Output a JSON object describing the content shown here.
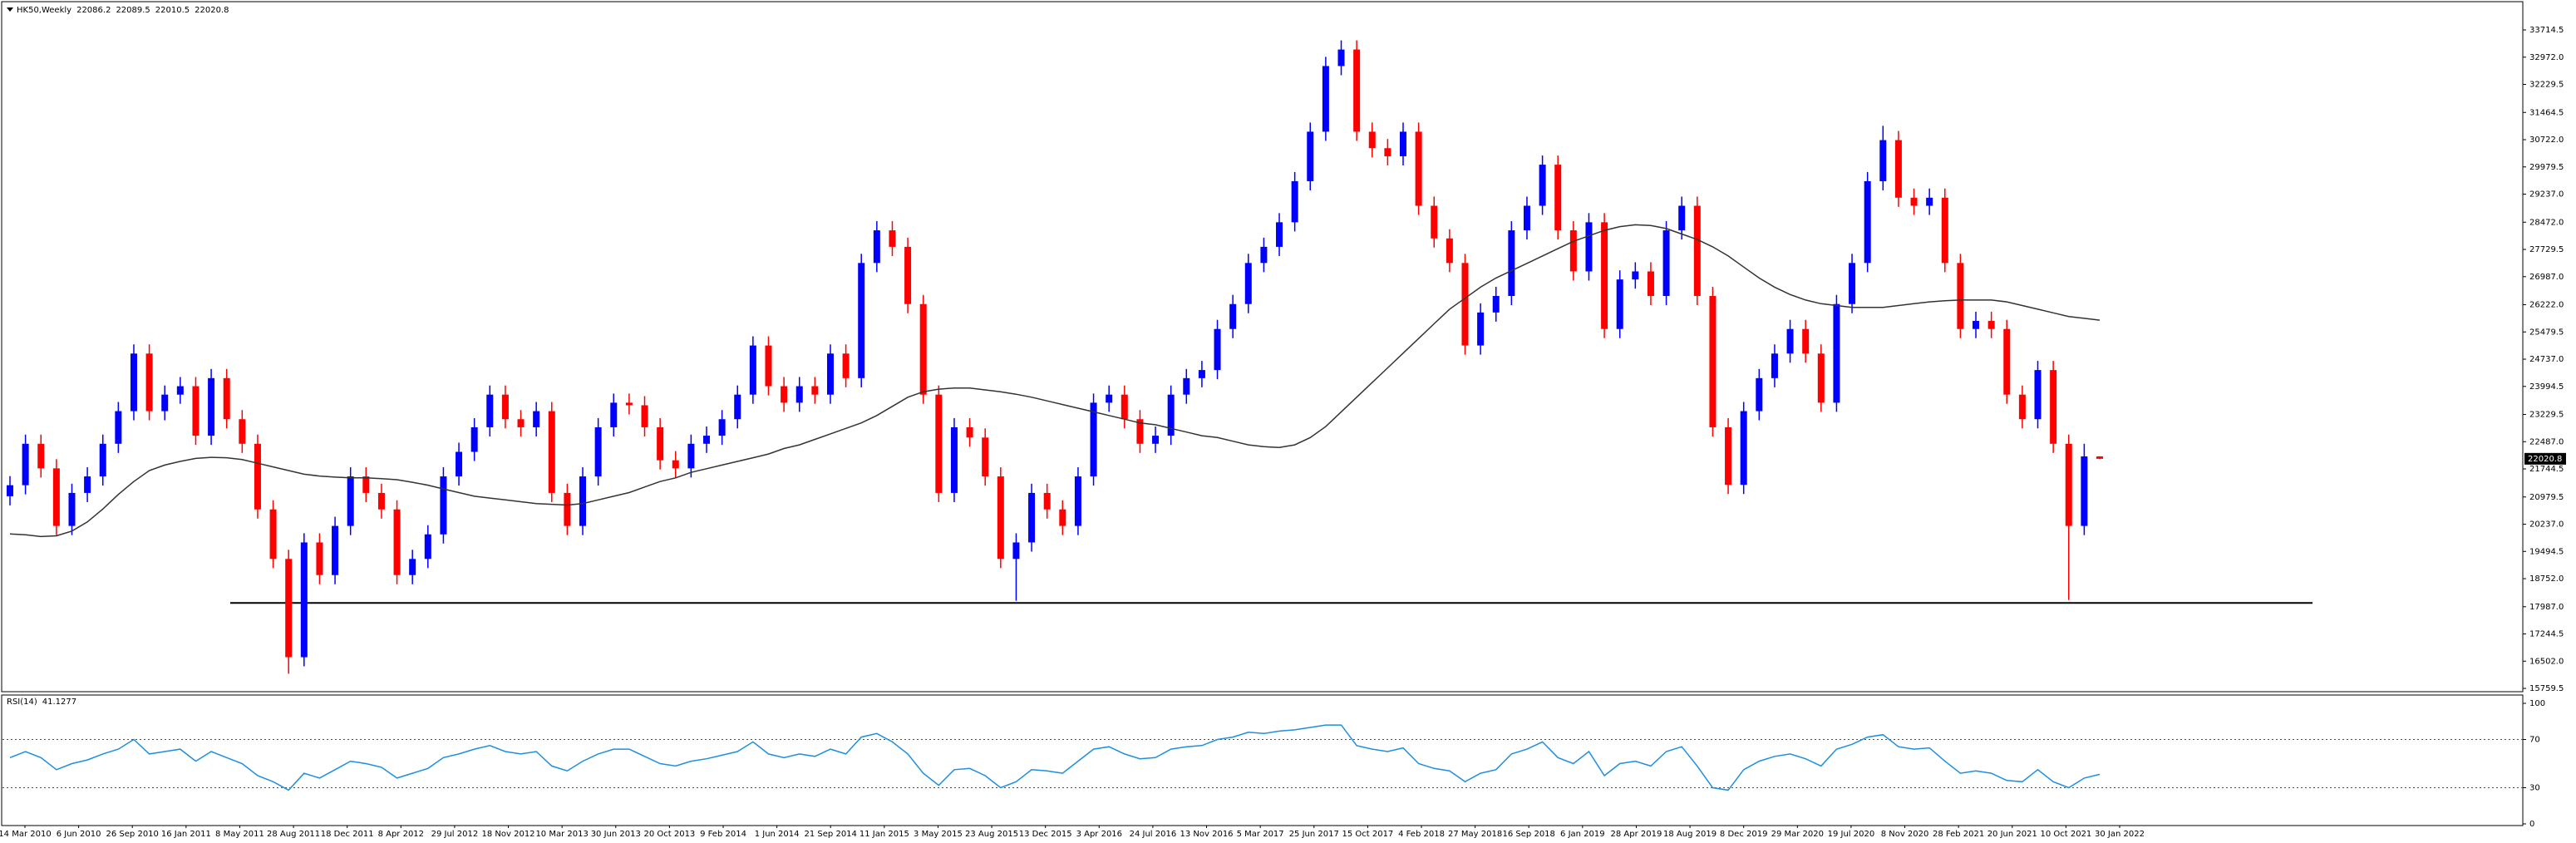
{
  "chart_data": {
    "type": "candlestick",
    "symbol": "HK50,Weekly",
    "up_color": "#0000ff",
    "down_color": "#ff0000",
    "open": [
      21000,
      21300,
      22430,
      21760,
      20190,
      21090,
      21540,
      22430,
      23320,
      24890,
      23320,
      23770,
      24000,
      22650,
      24220,
      23100,
      22430,
      20640,
      19290,
      16610,
      19740,
      18850,
      20190,
      21540,
      21090,
      20640,
      18850,
      19290,
      19960,
      21540,
      22210,
      22880,
      23770,
      23100,
      22880,
      23320,
      21090,
      20190,
      21540,
      22880,
      23550,
      23480,
      22880,
      21980,
      21760,
      22430,
      22650,
      23100,
      23770,
      25110,
      24000,
      23550,
      24000,
      23770,
      24890,
      24220,
      27360,
      28250,
      27800,
      26240,
      23770,
      21090,
      22880,
      22600,
      21540,
      19290,
      19740,
      21090,
      20640,
      20190,
      21540,
      23550,
      23770,
      23100,
      22430,
      22650,
      23770,
      24220,
      24440,
      25560,
      26240,
      27360,
      27800,
      28470,
      29590,
      30940,
      32730,
      33180,
      30940,
      30490,
      30270,
      30940,
      28920,
      28030,
      27360,
      25110,
      26010,
      26460,
      28250,
      28920,
      30040,
      28250,
      27130,
      28470,
      25560,
      26910,
      27130,
      26460,
      28250,
      28920,
      26460,
      22880,
      21310,
      23320,
      24220,
      24890,
      25560,
      24890,
      23550,
      26240,
      27360,
      29590,
      30710,
      29140,
      28920,
      29140,
      27360,
      25560,
      25780,
      25560,
      23770,
      23100,
      24440,
      22430,
      20190,
      22086.2
    ],
    "high": [
      21550,
      22680,
      22680,
      22010,
      21340,
      21790,
      22680,
      23570,
      25140,
      25140,
      24020,
      24250,
      24250,
      24470,
      24470,
      23350,
      22680,
      20890,
      19540,
      19990,
      19990,
      20440,
      21790,
      21790,
      21340,
      20890,
      19540,
      20210,
      21790,
      22460,
      23130,
      24020,
      24020,
      23350,
      23570,
      23570,
      21340,
      21790,
      23130,
      23800,
      23800,
      23730,
      23130,
      22230,
      22680,
      22900,
      23350,
      24020,
      25360,
      25360,
      24250,
      24250,
      24250,
      25140,
      25140,
      27610,
      28500,
      28500,
      28050,
      26490,
      24020,
      23130,
      23130,
      22850,
      21790,
      19990,
      21340,
      21340,
      20890,
      21790,
      23800,
      24020,
      24020,
      23350,
      22900,
      24020,
      24470,
      24690,
      25810,
      26490,
      27610,
      28050,
      28720,
      29840,
      31190,
      32980,
      33430,
      33430,
      31190,
      30740,
      31190,
      31190,
      29170,
      28280,
      27610,
      26260,
      26710,
      28500,
      29170,
      30290,
      30290,
      28500,
      28720,
      28720,
      27160,
      27380,
      27380,
      28500,
      29170,
      29170,
      26710,
      23130,
      23570,
      24470,
      25140,
      25810,
      25810,
      25140,
      26490,
      27610,
      29840,
      31100,
      30960,
      29390,
      29390,
      29390,
      27610,
      26030,
      26030,
      25810,
      24020,
      24690,
      24690,
      22680,
      22430,
      22089.5
    ],
    "low": [
      20750,
      21050,
      21510,
      19940,
      19940,
      20840,
      21290,
      22180,
      23070,
      23070,
      23070,
      23520,
      22400,
      22400,
      22850,
      22180,
      20390,
      19040,
      16160,
      16360,
      18600,
      18600,
      19940,
      20840,
      20390,
      18600,
      18600,
      19040,
      19710,
      21290,
      21960,
      22630,
      22850,
      22630,
      22630,
      20840,
      19940,
      19940,
      21290,
      22630,
      23230,
      22630,
      21730,
      21510,
      21510,
      22180,
      22400,
      22850,
      23520,
      23750,
      23300,
      23300,
      23520,
      23520,
      23970,
      23970,
      27110,
      27550,
      25990,
      23520,
      20840,
      20840,
      22350,
      21290,
      19040,
      18150,
      19490,
      20390,
      19940,
      19940,
      21290,
      23300,
      22850,
      22180,
      22180,
      22400,
      23520,
      23970,
      24190,
      25310,
      25990,
      27110,
      27550,
      28220,
      29340,
      30690,
      32480,
      30690,
      30240,
      30020,
      30020,
      28670,
      27780,
      27110,
      24860,
      24860,
      25760,
      26210,
      28000,
      28670,
      28000,
      26880,
      26880,
      25310,
      25310,
      26660,
      26210,
      26210,
      28000,
      26210,
      22630,
      21060,
      21060,
      23070,
      23970,
      24640,
      24640,
      23300,
      23300,
      25990,
      27110,
      29340,
      28890,
      28670,
      28670,
      27110,
      25310,
      25310,
      25310,
      23520,
      22850,
      22850,
      22180,
      18170,
      19940,
      22010.5
    ],
    "close": [
      21300,
      22430,
      21760,
      20190,
      21090,
      21540,
      22430,
      23320,
      24890,
      23320,
      23770,
      24000,
      22650,
      24220,
      23100,
      22430,
      20640,
      19290,
      16610,
      19740,
      18850,
      20190,
      21540,
      21090,
      20640,
      18850,
      19290,
      19960,
      21540,
      22210,
      22880,
      23770,
      23100,
      22880,
      23320,
      21090,
      20190,
      21540,
      22880,
      23550,
      23480,
      22880,
      21980,
      21760,
      22430,
      22650,
      23100,
      23770,
      25110,
      24000,
      23550,
      24000,
      23770,
      24890,
      24220,
      27360,
      28250,
      27800,
      26240,
      23770,
      21090,
      22880,
      22600,
      21540,
      19290,
      19740,
      21090,
      20640,
      20190,
      21540,
      23550,
      23770,
      23100,
      22430,
      22650,
      23770,
      24220,
      24440,
      25560,
      26240,
      27360,
      27800,
      28470,
      29590,
      30940,
      32730,
      33180,
      30940,
      30490,
      30270,
      30940,
      28920,
      28030,
      27360,
      25110,
      26010,
      26460,
      28250,
      28920,
      30040,
      28250,
      27130,
      28470,
      25560,
      26910,
      27130,
      26460,
      28250,
      28920,
      26460,
      22880,
      21310,
      23320,
      24220,
      24890,
      25560,
      24890,
      23550,
      26240,
      27360,
      29590,
      30710,
      29140,
      28920,
      29140,
      27360,
      25560,
      25780,
      25560,
      23770,
      23100,
      24440,
      22430,
      20190,
      22086.2,
      22020.8
    ],
    "ma": {
      "color": "#333333",
      "values": [
        19970,
        19950,
        19900,
        19920,
        20050,
        20300,
        20650,
        21050,
        21400,
        21700,
        21850,
        21950,
        22030,
        22060,
        22050,
        22000,
        21900,
        21800,
        21700,
        21600,
        21550,
        21520,
        21500,
        21500,
        21480,
        21450,
        21380,
        21300,
        21200,
        21100,
        21000,
        20950,
        20900,
        20850,
        20800,
        20780,
        20760,
        20800,
        20900,
        21000,
        21100,
        21250,
        21400,
        21500,
        21650,
        21750,
        21850,
        21950,
        22050,
        22150,
        22300,
        22400,
        22550,
        22700,
        22850,
        23000,
        23200,
        23450,
        23700,
        23850,
        23920,
        23950,
        23950,
        23900,
        23850,
        23780,
        23700,
        23600,
        23500,
        23400,
        23300,
        23200,
        23100,
        23000,
        22950,
        22850,
        22750,
        22650,
        22600,
        22500,
        22400,
        22350,
        22330,
        22400,
        22600,
        22900,
        23300,
        23700,
        24100,
        24500,
        24900,
        25300,
        25700,
        26100,
        26400,
        26700,
        26950,
        27150,
        27350,
        27550,
        27750,
        27950,
        28100,
        28250,
        28350,
        28400,
        28380,
        28300,
        28150,
        28000,
        27800,
        27550,
        27250,
        26950,
        26700,
        26500,
        26350,
        26250,
        26200,
        26150,
        26150,
        26150,
        26200,
        26250,
        26300,
        26330,
        26350,
        26350,
        26350,
        26300,
        26200,
        26100,
        26000,
        25900,
        25850,
        25800
      ]
    },
    "hline": 18090,
    "ylim": [
      15670,
      34440
    ],
    "yticks": [
      33714.5,
      {
        "value": 32972,
        "label": "32972.0"
      },
      32229.5,
      31464.5,
      {
        "value": 30722,
        "label": "30722.0"
      },
      29979.5,
      {
        "value": 29237,
        "label": "29237.0"
      },
      {
        "value": 28472,
        "label": "28472.0"
      },
      27729.5,
      {
        "value": 26987,
        "label": "26987.0"
      },
      {
        "value": 26222,
        "label": "26222.0"
      },
      25479.5,
      {
        "value": 24737,
        "label": "24737.0"
      },
      23994.5,
      23229.5,
      {
        "value": 22487,
        "label": "22487.0"
      },
      21744.5,
      20979.5,
      {
        "value": 20237,
        "label": "20237.0"
      },
      19494.5,
      {
        "value": 18752,
        "label": "18752.0"
      },
      {
        "value": 17987,
        "label": "17987.0"
      },
      17244.5,
      {
        "value": 16502,
        "label": "16502.0"
      },
      15759.5
    ],
    "dates": [
      "14 Mar 2010",
      "6 Jun 2010",
      "26 Sep 2010",
      "16 Jan 2011",
      "8 May 2011",
      "28 Aug 2011",
      "18 Dec 2011",
      "8 Apr 2012",
      "29 Jul 2012",
      "18 Nov 2012",
      "10 Mar 2013",
      "30 Jun 2013",
      "20 Oct 2013",
      "9 Feb 2014",
      "1 Jun 2014",
      "21 Sep 2014",
      "11 Jan 2015",
      "3 May 2015",
      "23 Aug 2015",
      "13 Dec 2015",
      "3 Apr 2016",
      "24 Jul 2016",
      "13 Nov 2016",
      "5 Mar 2017",
      "25 Jun 2017",
      "15 Oct 2017",
      "4 Feb 2018",
      "27 May 2018",
      "16 Sep 2018",
      "6 Jan 2019",
      "28 Apr 2019",
      "18 Aug 2019",
      "8 Dec 2019",
      "29 Mar 2020",
      "19 Jul 2020",
      "8 Nov 2020",
      "28 Feb 2021",
      "20 Jun 2021",
      "10 Oct 2021",
      "30 Jan 2022"
    ],
    "rsi": {
      "name": "RSI(14)",
      "color": "#1e8fe0",
      "level_color": "#ff0000",
      "levels": [
        30,
        70
      ],
      "ylim": [
        0,
        100
      ],
      "yticks": [
        0,
        30,
        70,
        100
      ],
      "values": [
        55,
        60,
        55,
        45,
        50,
        53,
        58,
        62,
        70,
        58,
        60,
        62,
        52,
        60,
        55,
        50,
        40,
        35,
        28,
        42,
        38,
        45,
        52,
        50,
        47,
        38,
        42,
        46,
        55,
        58,
        62,
        65,
        60,
        58,
        60,
        48,
        44,
        52,
        58,
        62,
        62,
        56,
        50,
        48,
        52,
        54,
        57,
        60,
        68,
        58,
        55,
        58,
        56,
        62,
        58,
        72,
        75,
        68,
        58,
        42,
        32,
        45,
        46,
        40,
        30,
        35,
        45,
        44,
        42,
        52,
        62,
        64,
        58,
        54,
        55,
        62,
        64,
        65,
        70,
        72,
        76,
        75,
        77,
        78,
        80,
        82,
        82,
        65,
        62,
        60,
        63,
        50,
        46,
        44,
        35,
        42,
        45,
        58,
        62,
        68,
        55,
        50,
        60,
        40,
        50,
        52,
        48,
        60,
        64,
        48,
        30,
        28,
        45,
        52,
        56,
        58,
        54,
        48,
        62,
        66,
        72,
        74,
        64,
        62,
        63,
        52,
        42,
        44,
        42,
        36,
        35,
        45,
        35,
        30,
        38,
        41.1277
      ]
    }
  }
}
